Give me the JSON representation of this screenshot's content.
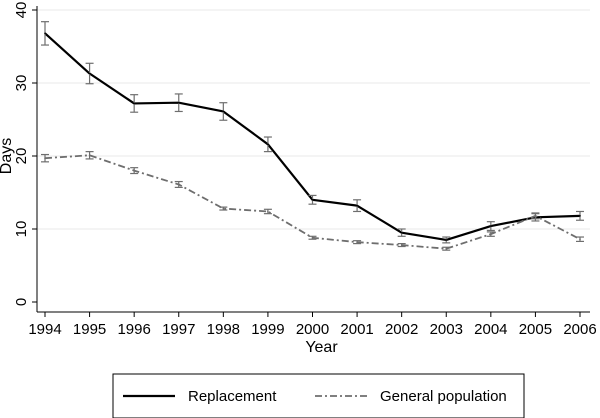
{
  "chart_data": {
    "type": "line",
    "title": "",
    "xlabel": "Year",
    "ylabel": "Days",
    "x": [
      1994,
      1995,
      1996,
      1997,
      1998,
      1999,
      2000,
      2001,
      2002,
      2003,
      2004,
      2005,
      2006
    ],
    "x_ticks": [
      "1994",
      "1995",
      "1996",
      "1997",
      "1998",
      "1999",
      "2000",
      "2001",
      "2002",
      "2003",
      "2004",
      "2005",
      "2006"
    ],
    "y_ticks": [
      0,
      10,
      20,
      30,
      40
    ],
    "ylim": [
      0,
      40
    ],
    "grid": true,
    "legend_position": "bottom",
    "series": [
      {
        "name": "Replacement",
        "color": "#000000",
        "style": "solid",
        "values": [
          36.8,
          31.3,
          27.2,
          27.3,
          26.1,
          21.6,
          14.0,
          13.2,
          9.5,
          8.5,
          10.4,
          11.6,
          11.8
        ],
        "ci_low": [
          35.2,
          29.9,
          26.0,
          26.1,
          24.9,
          20.6,
          13.4,
          12.4,
          9.0,
          8.1,
          9.8,
          11.1,
          11.2
        ],
        "ci_high": [
          38.4,
          32.7,
          28.4,
          28.5,
          27.3,
          22.6,
          14.6,
          14.0,
          10.0,
          8.9,
          11.0,
          12.1,
          12.4
        ]
      },
      {
        "name": "General population",
        "color": "#6e6e6e",
        "style": "dash-dot",
        "values": [
          19.7,
          20.1,
          18.0,
          16.1,
          12.8,
          12.4,
          8.8,
          8.2,
          7.8,
          7.3,
          9.3,
          11.8,
          8.6
        ],
        "ci_low": [
          19.2,
          19.6,
          17.6,
          15.7,
          12.6,
          12.1,
          8.6,
          8.0,
          7.6,
          7.1,
          9.0,
          11.4,
          8.3
        ],
        "ci_high": [
          20.2,
          20.6,
          18.4,
          16.5,
          13.0,
          12.7,
          9.0,
          8.4,
          8.0,
          7.5,
          9.6,
          12.2,
          8.9
        ]
      }
    ]
  }
}
